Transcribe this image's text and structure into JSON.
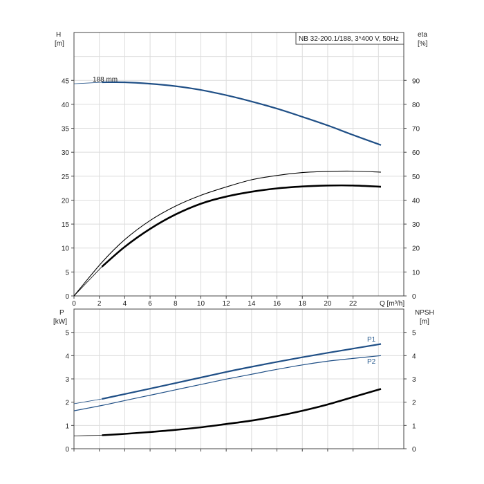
{
  "chart_data": [
    {
      "type": "line",
      "title_box": "NB 32-200.1/188, 3*400 V, 50Hz",
      "xlabel": "Q [m³/h]",
      "ylabel_left": [
        "H",
        "[m]"
      ],
      "ylabel_right": [
        "eta",
        "[%]"
      ],
      "xlim": [
        0,
        26
      ],
      "ylim_left": [
        0,
        50
      ],
      "ylim_right": [
        0,
        100
      ],
      "x_ticks": [
        0,
        2,
        4,
        6,
        8,
        10,
        12,
        14,
        16,
        18,
        20,
        22
      ],
      "y_ticks_left": [
        0,
        5,
        10,
        15,
        20,
        25,
        30,
        35,
        40,
        45
      ],
      "y_ticks_right": [
        0,
        10,
        20,
        30,
        40,
        50,
        60,
        70,
        80,
        90
      ],
      "grid": true,
      "annotations": [
        {
          "text": "188 mm",
          "x": 2.5,
          "y": 45.2
        }
      ],
      "series": [
        {
          "key": "head",
          "axis": "left",
          "color": "#1f4f86",
          "x": [
            0,
            2.2,
            4,
            6,
            8,
            10,
            12,
            14,
            16,
            18,
            20,
            22,
            24.2
          ],
          "y": [
            44.3,
            44.6,
            44.6,
            44.3,
            43.8,
            43.0,
            41.9,
            40.6,
            39.1,
            37.4,
            35.6,
            33.6,
            31.5
          ],
          "thin_before": 2.2
        },
        {
          "key": "eta_thin",
          "axis": "right",
          "color": "#000000",
          "x": [
            0,
            2.2,
            4,
            6,
            8,
            10,
            12,
            14,
            16,
            18,
            20,
            22,
            24.2
          ],
          "y": [
            0,
            14.0,
            23.5,
            31.5,
            37.5,
            42.0,
            45.5,
            48.5,
            50.3,
            51.5,
            52.0,
            52.1,
            51.7
          ]
        },
        {
          "key": "eta_thick",
          "axis": "right",
          "color": "#000000",
          "x": [
            0,
            2.2,
            4,
            6,
            8,
            10,
            12,
            14,
            16,
            18,
            20,
            22,
            24.2
          ],
          "y": [
            0,
            12.2,
            20.5,
            28.0,
            34.0,
            38.5,
            41.5,
            43.5,
            44.9,
            45.7,
            46.1,
            46.1,
            45.6
          ],
          "thin_before": 2.2
        }
      ]
    },
    {
      "type": "line",
      "xlim": [
        0,
        26
      ],
      "ylim_left": [
        0,
        5.5
      ],
      "ylim_right": [
        0,
        5.5
      ],
      "ylabel_left": [
        "P",
        "[kW]"
      ],
      "ylabel_right": [
        "NPSH",
        "[m]"
      ],
      "y_ticks_left": [
        0,
        1,
        2,
        3,
        4,
        5
      ],
      "y_ticks_right": [
        0,
        1,
        2,
        3,
        4,
        5
      ],
      "grid": true,
      "series": [
        {
          "key": "p1",
          "name": "P1",
          "axis": "left",
          "color": "#1f4f86",
          "x": [
            0,
            2.2,
            4,
            6,
            8,
            10,
            12,
            14,
            16,
            18,
            20,
            22,
            24.2
          ],
          "y": [
            1.93,
            2.14,
            2.35,
            2.58,
            2.82,
            3.06,
            3.3,
            3.52,
            3.73,
            3.93,
            4.12,
            4.3,
            4.5
          ],
          "thin_before": 2.2
        },
        {
          "key": "p2",
          "name": "P2",
          "axis": "left",
          "color": "#1f4f86",
          "x": [
            0,
            2.2,
            4,
            6,
            8,
            10,
            12,
            14,
            16,
            18,
            20,
            22,
            24.2
          ],
          "y": [
            1.63,
            1.86,
            2.07,
            2.3,
            2.53,
            2.76,
            2.99,
            3.2,
            3.41,
            3.6,
            3.76,
            3.88,
            4.0
          ]
        },
        {
          "key": "npsh",
          "axis": "right",
          "color": "#000000",
          "x": [
            0,
            2.2,
            4,
            6,
            8,
            10,
            12,
            14,
            16,
            18,
            20,
            22,
            24.2
          ],
          "y": [
            0.55,
            0.58,
            0.64,
            0.72,
            0.81,
            0.92,
            1.06,
            1.21,
            1.4,
            1.63,
            1.9,
            2.22,
            2.57
          ],
          "thin_before": 2.2
        }
      ]
    }
  ]
}
